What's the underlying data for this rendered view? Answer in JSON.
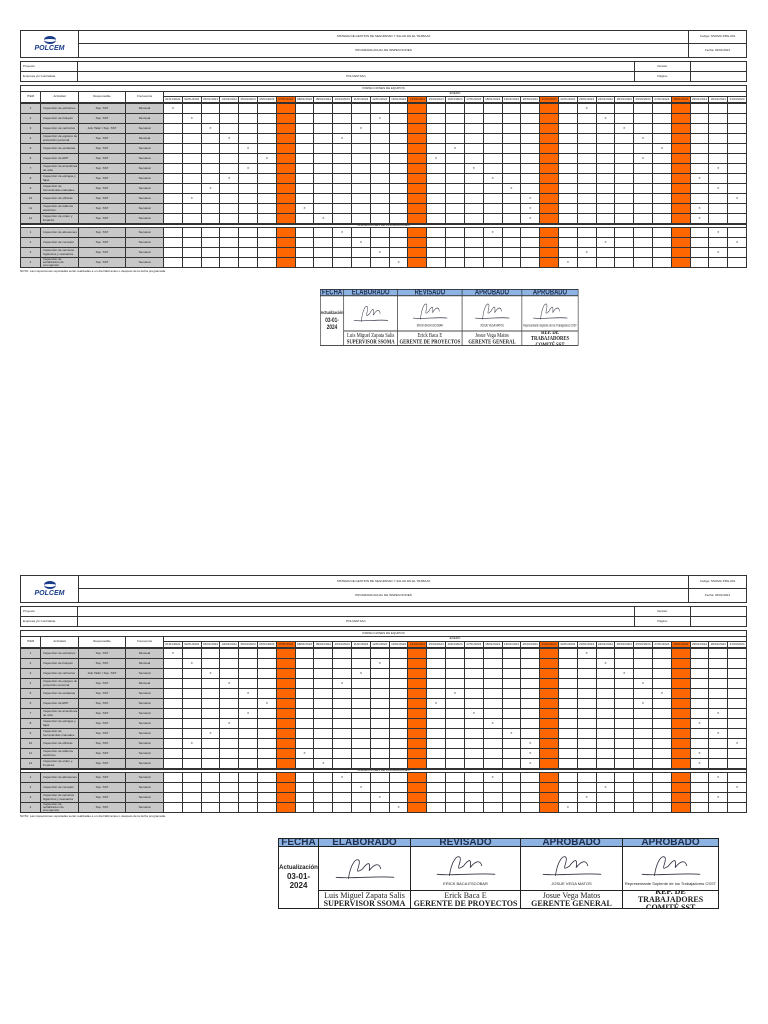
{
  "header": {
    "company": "POLCEM",
    "system_title": "SISTEMA DE GESTION DE SEGURIDAD Y SALUD EN EL TRABAJO",
    "doc_title": "PROGRAMA ANUAL DE INSPECCIONES",
    "code": "Código: SSOMA-PRG-001",
    "date": "Fecha: 03/01/2024",
    "project_label": "Proyecto",
    "company_label": "Empresa y/o Contratista",
    "company_value": "POLCEM SAC",
    "version_label": "Versión:",
    "page_label": "Página:",
    "section_title": "INSPECCIONES DE EQUIPOS",
    "month": "ENERO"
  },
  "columns": {
    "item": "ITEM",
    "activity": "Actividad",
    "responsible": "Responsable",
    "frequency": "Frecuencia"
  },
  "days": [
    "01/01/2024",
    "02/01/2024",
    "03/01/2024",
    "04/01/2024",
    "05/01/2024",
    "06/01/2024",
    "07/01/2024",
    "08/01/2024",
    "09/01/2024",
    "10/01/2024",
    "11/01/2024",
    "12/01/2024",
    "13/01/2024",
    "14/01/2024",
    "15/01/2024",
    "16/01/2024",
    "17/01/2024",
    "18/01/2024",
    "19/01/2024",
    "20/01/2024",
    "21/01/2024",
    "22/01/2024",
    "23/01/2024",
    "24/01/2024",
    "25/01/2024",
    "26/01/2024",
    "27/01/2024",
    "28/01/2024",
    "29/01/2024",
    "30/01/2024",
    "31/01/2024"
  ],
  "sunday_columns": [
    7,
    14,
    21,
    28
  ],
  "section2_title": "INSPECCIONES DE INSTALACIONES",
  "rows": [
    {
      "item": "1",
      "activity": "Inspección de extintores",
      "responsible": "Sup. SST",
      "frequency": "Mensual",
      "marks": [
        1,
        23
      ]
    },
    {
      "item": "2",
      "activity": "Inspección de botiquín",
      "responsible": "Sup. SST",
      "frequency": "Mensual",
      "marks": [
        2,
        12,
        24
      ]
    },
    {
      "item": "3",
      "activity": "Inspección de vehículos",
      "responsible": "Jefe Taller / Sup. SST",
      "frequency": "Semanal",
      "marks": [
        3,
        11,
        25
      ]
    },
    {
      "item": "4",
      "activity": "Inspección de equipos de protección personal",
      "responsible": "Sup. SST",
      "frequency": "Mensual",
      "marks": [
        4,
        10,
        26
      ]
    },
    {
      "item": "5",
      "activity": "Inspección de escaleras",
      "responsible": "Sup. SST",
      "frequency": "Semanal",
      "marks": [
        5,
        16,
        27
      ]
    },
    {
      "item": "6",
      "activity": "Inspección de EPP",
      "responsible": "Sup. SST",
      "frequency": "Semanal",
      "marks": [
        6,
        15,
        26
      ]
    },
    {
      "item": "7",
      "activity": "Inspección de arnés/línea de vida",
      "responsible": "Sup. SST",
      "frequency": "Semanal",
      "marks": [
        5,
        17,
        30
      ]
    },
    {
      "item": "8",
      "activity": "Inspección de eslingas y fajas",
      "responsible": "Sup. SST",
      "frequency": "Semanal",
      "marks": [
        4,
        18,
        29
      ]
    },
    {
      "item": "9",
      "activity": "Inspección de herramientas manuales",
      "responsible": "Sup. SST",
      "frequency": "Semanal",
      "marks": [
        3,
        19,
        30
      ]
    },
    {
      "item": "10",
      "activity": "Inspección de oficinas",
      "responsible": "Sup. SST",
      "frequency": "Semanal",
      "marks": [
        2,
        20,
        31
      ]
    },
    {
      "item": "11",
      "activity": "Inspección de tableros eléctricos",
      "responsible": "Sup. SST",
      "frequency": "Semanal",
      "marks": [
        8,
        20,
        29
      ]
    },
    {
      "item": "12",
      "activity": "Inspección de orden y limpieza",
      "responsible": "Sup. SST",
      "frequency": "Semanal",
      "marks": [
        9,
        20,
        29
      ]
    }
  ],
  "rows2": [
    {
      "item": "1",
      "activity": "Inspección de almacenes",
      "responsible": "Sup. SST",
      "frequency": "Semanal",
      "marks": [
        10,
        18,
        30
      ]
    },
    {
      "item": "2",
      "activity": "Inspección de comedor",
      "responsible": "Sup. SST",
      "frequency": "Semanal",
      "marks": [
        11,
        24,
        31
      ]
    },
    {
      "item": "3",
      "activity": "Inspección de servicios higiénicos y vestuarios",
      "responsible": "Sup. SST",
      "frequency": "Semanal",
      "marks": [
        12,
        23,
        30
      ]
    },
    {
      "item": "4",
      "activity": "Inspección de señalización de emergencia",
      "responsible": "Sup. SST",
      "frequency": "Semanal",
      "marks": [
        13,
        22
      ]
    }
  ],
  "mark_symbol": "X",
  "note": "NOTA: Las inspecciones reportadas serán realizadas a un día hábil antes o después de la fecha programada.",
  "signatures": {
    "fecha_label": "FECHA",
    "update_label": "Actualización",
    "update_date": "03-01-2024",
    "blocks": [
      {
        "role": "ELABORADO",
        "name": "Luis Miguel Zapata Salis",
        "position": "SUPERVISOR SSOMA",
        "stamp": ""
      },
      {
        "role": "REVISADO",
        "name": "Erick Baca E",
        "position": "GERENTE DE PROYECTOS",
        "stamp": "ERICK BACA ESCOBAR"
      },
      {
        "role": "APROBADO",
        "name": "Josue Vega Matos",
        "position": "GERENTE GENERAL",
        "stamp": "JOSUE VEGA MATOS"
      },
      {
        "role": "APROBADO",
        "name": "",
        "position": "REP. DE TRABAJADORES COMITÉ SST",
        "stamp": "Representante Suplente de los Trabajadores CSST"
      }
    ]
  },
  "colors": {
    "sunday": "#ff6600",
    "activity_fill": "#c8c8c8",
    "signature_header": "#8db3e2"
  }
}
